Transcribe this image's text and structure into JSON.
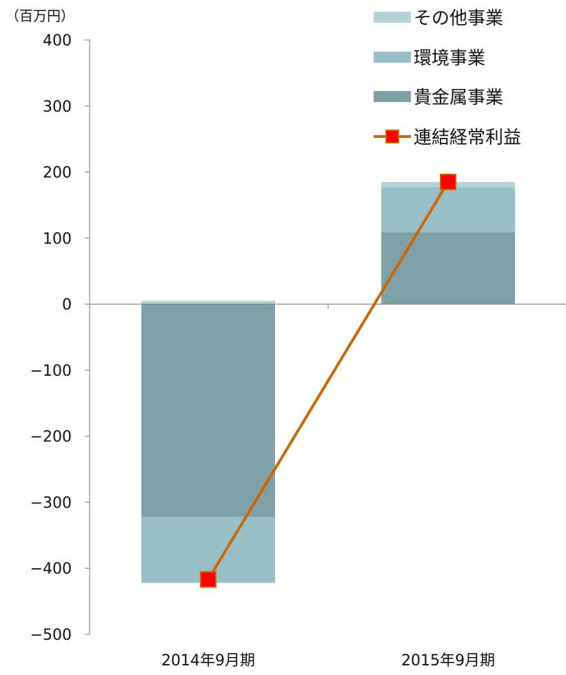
{
  "chart_data": {
    "type": "bar",
    "unit_label": "（百万円）",
    "categories": [
      "2014年9月期",
      "2015年9月期"
    ],
    "ylim": [
      -500,
      400
    ],
    "yticks": [
      400,
      300,
      200,
      100,
      0,
      -100,
      -200,
      -300,
      -400,
      -500
    ],
    "ytick_labels": [
      "400",
      "300",
      "200",
      "100",
      "0",
      "−100",
      "−200",
      "−300",
      "−400",
      "−500"
    ],
    "series": [
      {
        "name": "貴金属事業",
        "kind": "bar",
        "values": [
          -322,
          109
        ],
        "color": "#7fa1a7"
      },
      {
        "name": "環境事業",
        "kind": "bar",
        "values": [
          -100,
          68
        ],
        "color": "#99bfc6"
      },
      {
        "name": "その他事業",
        "kind": "bar",
        "values": [
          5,
          8
        ],
        "color": "#b2d3da"
      },
      {
        "name": "連結経常利益",
        "kind": "line",
        "values": [
          -417,
          185
        ],
        "color": "#cc6600",
        "marker_color": "#ff0000"
      }
    ],
    "legend": [
      "その他事業",
      "環境事業",
      "貴金属事業",
      "連結経常利益"
    ],
    "legend_position": "top-right",
    "grid": false
  }
}
